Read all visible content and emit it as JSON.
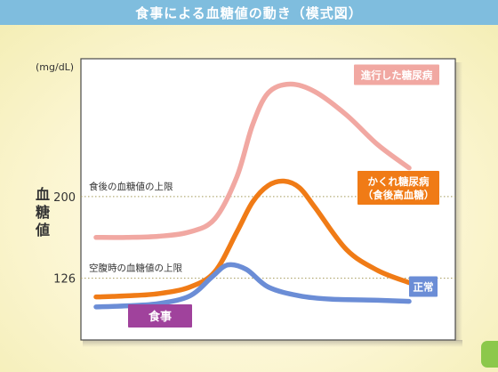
{
  "page": {
    "title": "食事による血糖値の動き（模式図）"
  },
  "chart_data": {
    "type": "line",
    "title": "食事による血糖値の動き（模式図）",
    "unit_label": "(mg/dL)",
    "ylabel": "血糖値",
    "y_ticks": [
      {
        "value": 126,
        "label": "126"
      },
      {
        "value": 200,
        "label": "200"
      }
    ],
    "reference_lines": [
      {
        "value": 200,
        "label": "食後の血糖値の上限"
      },
      {
        "value": 126,
        "label": "空腹時の血糖値の上限"
      }
    ],
    "ylim": [
      70,
      325
    ],
    "xlim": [
      0,
      100
    ],
    "meal": {
      "x": 17,
      "label": "食事"
    },
    "series": [
      {
        "name": "進行した糖尿病",
        "color": "#f1a8a2",
        "x": [
          0,
          10,
          20,
          30,
          38,
          45,
          50,
          55,
          62,
          70,
          80,
          90,
          100
        ],
        "values": [
          163,
          163,
          164,
          168,
          180,
          218,
          265,
          294,
          302,
          295,
          274,
          247,
          226
        ]
      },
      {
        "name": "かくれ糖尿病（食後高血糖）",
        "color": "#f07b16",
        "x": [
          0,
          10,
          20,
          30,
          38,
          45,
          50,
          55,
          60,
          65,
          70,
          80,
          90,
          100
        ],
        "values": [
          109,
          110,
          112,
          118,
          132,
          168,
          195,
          210,
          214,
          208,
          190,
          152,
          133,
          122
        ]
      },
      {
        "name": "正常",
        "color": "#6b8dd6",
        "x": [
          0,
          10,
          20,
          30,
          37,
          42,
          48,
          55,
          65,
          75,
          90,
          100
        ],
        "values": [
          100,
          101,
          103,
          110,
          127,
          138,
          134,
          118,
          110,
          107,
          106,
          105
        ]
      }
    ]
  }
}
